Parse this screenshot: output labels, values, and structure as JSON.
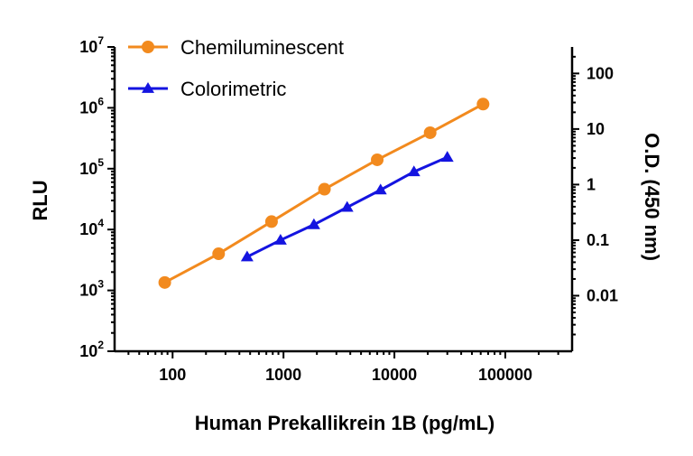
{
  "chart_data": {
    "type": "scatter",
    "xlabel": "Human Prekallikrein 1B (pg/mL)",
    "ylabel": "RLU",
    "y2label": "O.D. (450 nm)",
    "x_scale": "log",
    "y_scale": "log",
    "y2_scale": "log",
    "xlim": [
      30,
      400000
    ],
    "ylim": [
      100,
      10000000
    ],
    "y2lim": [
      0.001,
      300
    ],
    "x_ticks": [
      {
        "value": 100,
        "label": "100"
      },
      {
        "value": 1000,
        "label": "1000"
      },
      {
        "value": 10000,
        "label": "10000"
      },
      {
        "value": 100000,
        "label": "100000"
      }
    ],
    "y_ticks": [
      {
        "value": 100,
        "base": "10",
        "exp": "2"
      },
      {
        "value": 1000,
        "base": "10",
        "exp": "3"
      },
      {
        "value": 10000,
        "base": "10",
        "exp": "4"
      },
      {
        "value": 100000,
        "base": "10",
        "exp": "5"
      },
      {
        "value": 1000000,
        "base": "10",
        "exp": "6"
      },
      {
        "value": 10000000,
        "base": "10",
        "exp": "7"
      }
    ],
    "y2_ticks": [
      {
        "value": 0.01,
        "label": "0.01"
      },
      {
        "value": 0.1,
        "label": "0.1"
      },
      {
        "value": 1,
        "label": "1"
      },
      {
        "value": 10,
        "label": "10"
      },
      {
        "value": 100,
        "label": "100"
      }
    ],
    "legend_position": "top-left",
    "grid": false,
    "series": [
      {
        "name": "Chemiluminescent",
        "axis": "left",
        "marker": "circle",
        "color": "#F28A1E",
        "x": [
          85,
          260,
          780,
          2340,
          7000,
          21000,
          63000
        ],
        "y": [
          1350,
          4000,
          13500,
          46000,
          140000,
          390000,
          1150000
        ]
      },
      {
        "name": "Colorimetric",
        "axis": "right",
        "marker": "triangle",
        "color": "#1414E0",
        "x": [
          470,
          940,
          1880,
          3750,
          7500,
          15000,
          30000
        ],
        "y": [
          0.05,
          0.1,
          0.19,
          0.39,
          0.8,
          1.7,
          3.1
        ]
      }
    ]
  }
}
